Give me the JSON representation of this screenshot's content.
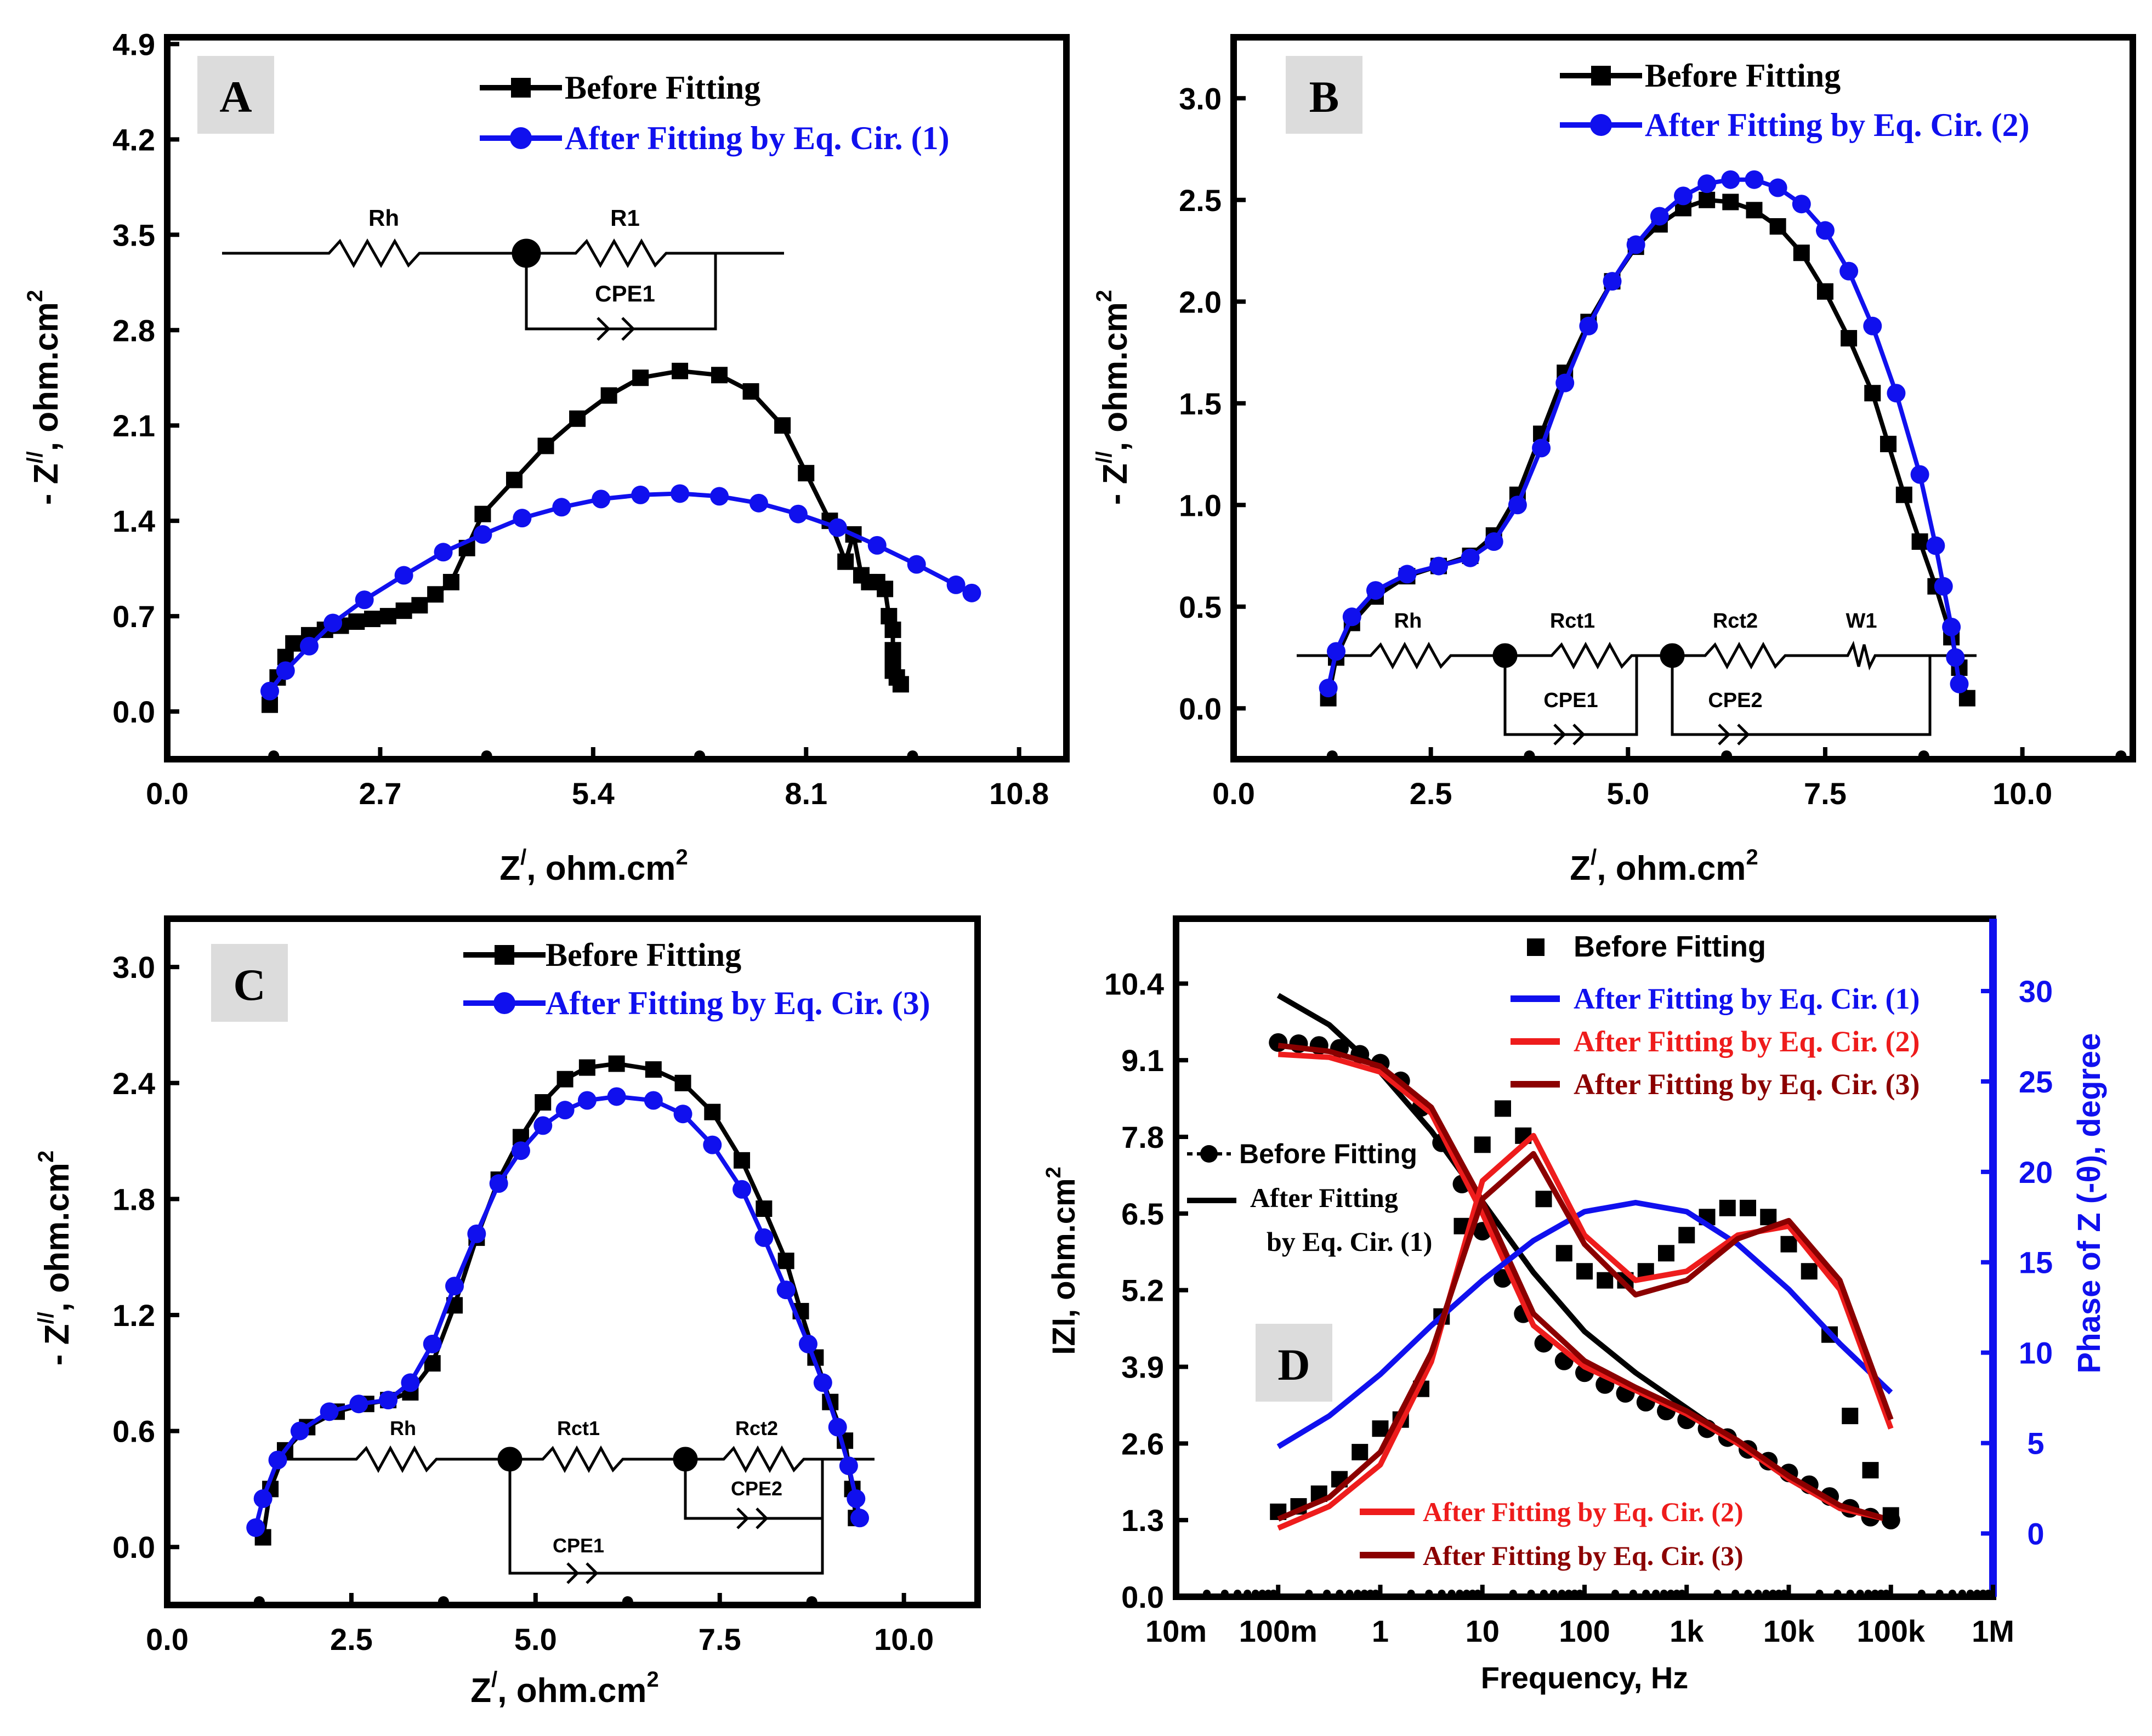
{
  "chart_data": [
    {
      "id": "A",
      "type": "line",
      "panel_label": "A",
      "xlabel": "Z/, ohm.cm2",
      "ylabel": "- Z//, ohm.cm2",
      "xlim": [
        0,
        11.4
      ],
      "ylim": [
        -0.35,
        4.95
      ],
      "xticks": [
        0,
        2.7,
        5.4,
        8.1,
        10.8
      ],
      "xtick_labels": [
        "0.0",
        "2.7",
        "5.4",
        "8.1",
        "10.8"
      ],
      "yticks": [
        0,
        0.7,
        1.4,
        2.1,
        2.8,
        3.5,
        4.2,
        4.9
      ],
      "ytick_labels": [
        "0.0",
        "0.7",
        "1.4",
        "2.1",
        "2.8",
        "3.5",
        "4.2",
        "4.9"
      ],
      "legend": [
        "Before Fitting",
        "After Fitting by Eq. Cir. (1)"
      ],
      "series": [
        {
          "name": "Before Fitting",
          "color": "#000000",
          "marker": "square",
          "x": [
            1.3,
            1.4,
            1.5,
            1.6,
            1.8,
            2.0,
            2.2,
            2.4,
            2.6,
            2.8,
            3.0,
            3.2,
            3.4,
            3.6,
            3.8,
            4.0,
            4.4,
            4.8,
            5.2,
            5.6,
            6.0,
            6.5,
            7.0,
            7.4,
            7.8,
            8.1,
            8.4,
            8.6,
            8.7,
            8.8,
            8.9,
            9.0,
            9.1,
            9.15,
            9.2,
            9.2,
            9.2,
            9.2,
            9.25,
            9.3
          ],
          "y": [
            0.05,
            0.25,
            0.4,
            0.5,
            0.56,
            0.6,
            0.63,
            0.66,
            0.68,
            0.7,
            0.74,
            0.78,
            0.86,
            0.95,
            1.2,
            1.45,
            1.7,
            1.95,
            2.15,
            2.32,
            2.45,
            2.5,
            2.47,
            2.35,
            2.1,
            1.75,
            1.4,
            1.1,
            1.3,
            1.0,
            0.95,
            0.95,
            0.9,
            0.7,
            0.6,
            0.45,
            0.38,
            0.3,
            0.25,
            0.2
          ]
        },
        {
          "name": "After Fitting by Eq. Cir. (1)",
          "color": "#1010ee",
          "marker": "circle",
          "x": [
            1.3,
            1.5,
            1.8,
            2.1,
            2.5,
            3.0,
            3.5,
            4.0,
            4.5,
            5.0,
            5.5,
            6.0,
            6.5,
            7.0,
            7.5,
            8.0,
            8.5,
            9.0,
            9.5,
            10.0,
            10.2
          ],
          "y": [
            0.15,
            0.3,
            0.48,
            0.65,
            0.82,
            1.0,
            1.17,
            1.3,
            1.42,
            1.5,
            1.56,
            1.59,
            1.6,
            1.58,
            1.53,
            1.45,
            1.35,
            1.22,
            1.08,
            0.93,
            0.87
          ]
        }
      ],
      "circuit_labels": [
        "Rh",
        "R1",
        "CPE1"
      ]
    },
    {
      "id": "B",
      "type": "line",
      "panel_label": "B",
      "xlabel": "Z/, ohm.cm2",
      "ylabel": "- Z//, ohm.cm2",
      "xlim": [
        0,
        11.4
      ],
      "ylim": [
        -0.25,
        3.3
      ],
      "xticks": [
        0,
        2.5,
        5.0,
        7.5,
        10.0
      ],
      "xtick_labels": [
        "0.0",
        "2.5",
        "5.0",
        "7.5",
        "10.0"
      ],
      "yticks": [
        0,
        0.5,
        1.0,
        1.5,
        2.0,
        2.5,
        3.0
      ],
      "ytick_labels": [
        "0.0",
        "0.5",
        "1.0",
        "1.5",
        "2.0",
        "2.5",
        "3.0"
      ],
      "legend": [
        "Before Fitting",
        "After Fitting by Eq. Cir. (2)"
      ],
      "series": [
        {
          "name": "Before Fitting",
          "color": "#000000",
          "marker": "square",
          "x": [
            1.2,
            1.3,
            1.5,
            1.8,
            2.2,
            2.6,
            3.0,
            3.3,
            3.6,
            3.9,
            4.2,
            4.5,
            4.8,
            5.1,
            5.4,
            5.7,
            6.0,
            6.3,
            6.6,
            6.9,
            7.2,
            7.5,
            7.8,
            8.1,
            8.3,
            8.5,
            8.7,
            8.9,
            9.1,
            9.2,
            9.3
          ],
          "y": [
            0.05,
            0.25,
            0.42,
            0.55,
            0.65,
            0.7,
            0.75,
            0.85,
            1.05,
            1.35,
            1.65,
            1.9,
            2.1,
            2.27,
            2.38,
            2.46,
            2.5,
            2.49,
            2.45,
            2.37,
            2.24,
            2.05,
            1.82,
            1.55,
            1.3,
            1.05,
            0.82,
            0.6,
            0.35,
            0.2,
            0.05
          ]
        },
        {
          "name": "After Fitting by Eq. Cir. (2)",
          "color": "#1010ee",
          "marker": "circle",
          "x": [
            1.2,
            1.3,
            1.5,
            1.8,
            2.2,
            2.6,
            3.0,
            3.3,
            3.6,
            3.9,
            4.2,
            4.5,
            4.8,
            5.1,
            5.4,
            5.7,
            6.0,
            6.3,
            6.6,
            6.9,
            7.2,
            7.5,
            7.8,
            8.1,
            8.4,
            8.7,
            8.9,
            9.0,
            9.1,
            9.15,
            9.2
          ],
          "y": [
            0.1,
            0.28,
            0.45,
            0.58,
            0.66,
            0.7,
            0.74,
            0.82,
            1.0,
            1.28,
            1.6,
            1.88,
            2.1,
            2.28,
            2.42,
            2.52,
            2.58,
            2.6,
            2.6,
            2.56,
            2.48,
            2.35,
            2.15,
            1.88,
            1.55,
            1.15,
            0.8,
            0.6,
            0.4,
            0.25,
            0.12
          ]
        }
      ],
      "circuit_labels": [
        "Rh",
        "Rct1",
        "Rct2",
        "W1",
        "CPE1",
        "CPE2"
      ]
    },
    {
      "id": "C",
      "type": "line",
      "panel_label": "C",
      "xlabel": "Z/, ohm.cm2",
      "ylabel": "- Z//, ohm.cm2",
      "xlim": [
        0,
        11.0
      ],
      "ylim": [
        -0.3,
        3.25
      ],
      "xticks": [
        0,
        2.5,
        5.0,
        7.5,
        10.0
      ],
      "xtick_labels": [
        "0.0",
        "2.5",
        "5.0",
        "7.5",
        "10.0"
      ],
      "yticks": [
        0,
        0.6,
        1.2,
        1.8,
        2.4,
        3.0
      ],
      "ytick_labels": [
        "0.0",
        "0.6",
        "1.2",
        "1.8",
        "2.4",
        "3.0"
      ],
      "legend": [
        "Before Fitting",
        "After Fitting by Eq. Cir. (3)"
      ],
      "series": [
        {
          "name": "Before Fitting",
          "color": "#000000",
          "marker": "square",
          "x": [
            1.3,
            1.4,
            1.6,
            1.9,
            2.3,
            2.7,
            3.0,
            3.3,
            3.6,
            3.9,
            4.2,
            4.5,
            4.8,
            5.1,
            5.4,
            5.7,
            6.1,
            6.6,
            7.0,
            7.4,
            7.8,
            8.1,
            8.4,
            8.6,
            8.8,
            9.0,
            9.2,
            9.3,
            9.35
          ],
          "y": [
            0.05,
            0.3,
            0.5,
            0.62,
            0.7,
            0.74,
            0.76,
            0.8,
            0.95,
            1.25,
            1.6,
            1.9,
            2.12,
            2.3,
            2.42,
            2.48,
            2.5,
            2.47,
            2.4,
            2.25,
            2.0,
            1.75,
            1.48,
            1.22,
            0.98,
            0.75,
            0.55,
            0.3,
            0.15
          ]
        },
        {
          "name": "After Fitting by Eq. Cir. (3)",
          "color": "#1010ee",
          "marker": "circle",
          "x": [
            1.2,
            1.3,
            1.5,
            1.8,
            2.2,
            2.6,
            3.0,
            3.3,
            3.6,
            3.9,
            4.2,
            4.5,
            4.8,
            5.1,
            5.4,
            5.7,
            6.1,
            6.6,
            7.0,
            7.4,
            7.8,
            8.1,
            8.4,
            8.7,
            8.9,
            9.1,
            9.25,
            9.35,
            9.4
          ],
          "y": [
            0.1,
            0.25,
            0.45,
            0.6,
            0.7,
            0.74,
            0.76,
            0.85,
            1.05,
            1.35,
            1.62,
            1.88,
            2.05,
            2.18,
            2.26,
            2.31,
            2.33,
            2.31,
            2.24,
            2.08,
            1.85,
            1.6,
            1.33,
            1.05,
            0.85,
            0.62,
            0.42,
            0.25,
            0.15
          ]
        }
      ],
      "circuit_labels": [
        "Rh",
        "Rct1",
        "Rct2",
        "CPE2",
        "CPE1"
      ]
    },
    {
      "id": "D",
      "type": "line",
      "panel_label": "D",
      "xlabel": "Frequency, Hz",
      "ylabel": "IZI, ohm.cm2",
      "y2label": "Phase of Z (-θ), degree",
      "xscale": "log",
      "xlim_log10": [
        -2,
        6
      ],
      "ylim": [
        0,
        11.5
      ],
      "y2lim": [
        -3.5,
        34
      ],
      "xticks_log10": [
        -2,
        -1,
        0,
        1,
        2,
        3,
        4,
        5,
        6
      ],
      "xtick_labels": [
        "10m",
        "100m",
        "1",
        "10",
        "100",
        "1k",
        "10k",
        "100k",
        "1M"
      ],
      "yticks": [
        0,
        1.3,
        2.6,
        3.9,
        5.2,
        6.5,
        7.8,
        9.1,
        10.4
      ],
      "ytick_labels": [
        "0.0",
        "1.3",
        "2.6",
        "3.9",
        "5.2",
        "6.5",
        "7.8",
        "9.1",
        "10.4"
      ],
      "y2ticks": [
        0,
        5,
        10,
        15,
        20,
        25,
        30
      ],
      "y2tick_labels": [
        "0",
        "5",
        "10",
        "15",
        "20",
        "25",
        "30"
      ],
      "legend_right": [
        "Before Fitting",
        "After Fitting by Eq. Cir. (1)",
        "After Fitting by Eq. Cir. (2)",
        "After Fitting by Eq. Cir. (3)"
      ],
      "legend_left": [
        "Before Fitting",
        "After Fitting",
        "by Eq. Cir. (1)"
      ],
      "legend_bottom": [
        "After Fitting by Eq. Cir. (2)",
        "After Fitting by Eq. Cir. (3)"
      ],
      "series": [
        {
          "name": "Before Fitting |Z|",
          "axis": "left",
          "color": "#000000",
          "marker": "circle",
          "logf": [
            -1,
            -0.8,
            -0.6,
            -0.4,
            -0.2,
            0,
            0.2,
            0.4,
            0.6,
            0.8,
            1.0,
            1.2,
            1.4,
            1.6,
            1.8,
            2.0,
            2.2,
            2.4,
            2.6,
            2.8,
            3.0,
            3.2,
            3.4,
            3.6,
            3.8,
            4.0,
            4.2,
            4.4,
            4.6,
            4.8,
            5.0
          ],
          "y": [
            9.4,
            9.38,
            9.35,
            9.3,
            9.2,
            9.05,
            8.75,
            8.3,
            7.7,
            7.0,
            6.2,
            5.4,
            4.8,
            4.3,
            4.0,
            3.8,
            3.6,
            3.45,
            3.3,
            3.15,
            3.0,
            2.85,
            2.7,
            2.5,
            2.3,
            2.1,
            1.9,
            1.7,
            1.5,
            1.35,
            1.3
          ]
        },
        {
          "name": "Fit Cir. (1) |Z|",
          "axis": "left",
          "color": "#000000",
          "marker": "none",
          "logf": [
            -1,
            -0.5,
            0,
            0.5,
            1.0,
            1.5,
            2.0,
            2.5,
            3.0,
            3.5,
            4.0,
            4.5,
            5.0
          ],
          "y": [
            10.2,
            9.7,
            8.9,
            7.9,
            6.7,
            5.5,
            4.5,
            3.8,
            3.2,
            2.6,
            2.0,
            1.5,
            1.3
          ]
        },
        {
          "name": "Fit Cir. (2) |Z|",
          "axis": "left",
          "color": "#ee1c1c",
          "marker": "none",
          "logf": [
            -1,
            -0.5,
            0,
            0.5,
            1.0,
            1.5,
            2.0,
            2.5,
            3.0,
            3.5,
            4.0,
            4.5,
            5.0
          ],
          "y": [
            9.2,
            9.15,
            8.9,
            8.2,
            6.5,
            4.6,
            3.9,
            3.5,
            3.1,
            2.6,
            2.0,
            1.5,
            1.3
          ]
        },
        {
          "name": "Fit Cir. (3) |Z|",
          "axis": "left",
          "color": "#8b0000",
          "marker": "none",
          "logf": [
            -1,
            -0.5,
            0,
            0.5,
            1.0,
            1.5,
            2.0,
            2.5,
            3.0,
            3.5,
            4.0,
            4.5,
            5.0
          ],
          "y": [
            9.35,
            9.25,
            9.0,
            8.3,
            6.7,
            4.8,
            4.0,
            3.55,
            3.15,
            2.65,
            2.05,
            1.55,
            1.3
          ]
        },
        {
          "name": "Before Fitting Phase",
          "axis": "right",
          "color": "#000000",
          "marker": "square",
          "logf": [
            -1,
            -0.8,
            -0.6,
            -0.4,
            -0.2,
            0,
            0.2,
            0.4,
            0.6,
            0.8,
            1.0,
            1.2,
            1.4,
            1.6,
            1.8,
            2.0,
            2.2,
            2.4,
            2.6,
            2.8,
            3.0,
            3.2,
            3.4,
            3.6,
            3.8,
            4.0,
            4.2,
            4.4,
            4.6,
            4.8,
            5.0
          ],
          "y": [
            1.2,
            1.5,
            2.2,
            3.0,
            4.5,
            5.8,
            6.3,
            8.0,
            12.0,
            17.0,
            21.5,
            23.5,
            22.0,
            18.5,
            15.5,
            14.5,
            14.0,
            14.0,
            14.5,
            15.5,
            16.5,
            17.5,
            18.0,
            18.0,
            17.5,
            16.0,
            14.5,
            11.0,
            6.5,
            3.5,
            1.0
          ]
        },
        {
          "name": "Fit Cir. (1) Phase",
          "axis": "right",
          "color": "#1010ee",
          "marker": "none",
          "logf": [
            -1,
            -0.5,
            0,
            0.5,
            1.0,
            1.5,
            2.0,
            2.5,
            3.0,
            3.5,
            4.0,
            4.5,
            5.0
          ],
          "y": [
            4.8,
            6.5,
            8.8,
            11.5,
            14.0,
            16.2,
            17.8,
            18.3,
            17.8,
            16.0,
            13.5,
            10.5,
            7.8
          ]
        },
        {
          "name": "Fit Cir. (2) Phase",
          "axis": "right",
          "color": "#ee1c1c",
          "marker": "none",
          "logf": [
            -1,
            -0.5,
            0,
            0.5,
            1.0,
            1.5,
            2.0,
            2.5,
            3.0,
            3.5,
            4.0,
            4.5,
            5.0
          ],
          "y": [
            0.3,
            1.5,
            3.8,
            9.5,
            19.5,
            22.0,
            16.5,
            14.0,
            14.5,
            16.5,
            17.0,
            13.5,
            5.8
          ]
        },
        {
          "name": "Fit Cir. (3) Phase",
          "axis": "right",
          "color": "#8b0000",
          "marker": "none",
          "logf": [
            -1,
            -0.5,
            0,
            0.5,
            1.0,
            1.5,
            2.0,
            2.5,
            3.0,
            3.5,
            4.0,
            4.5,
            5.0
          ],
          "y": [
            0.8,
            2.0,
            4.5,
            10.0,
            18.5,
            21.0,
            16.0,
            13.2,
            14.0,
            16.3,
            17.3,
            14.0,
            6.3
          ]
        }
      ]
    }
  ]
}
